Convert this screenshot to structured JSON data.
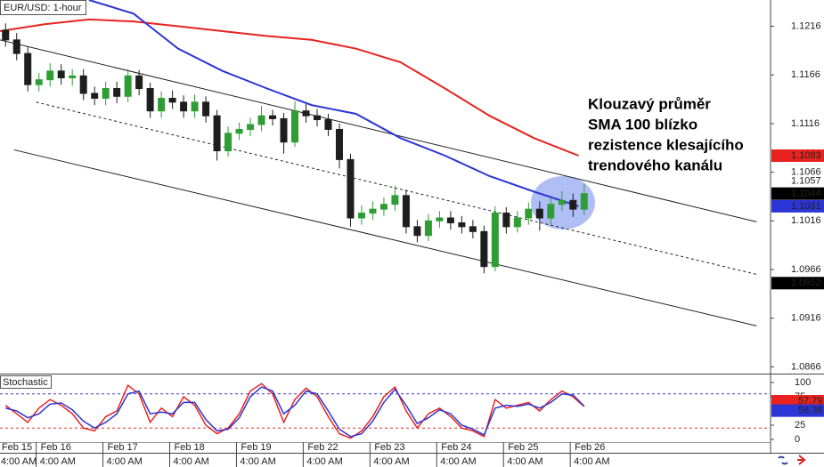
{
  "chart_data": {
    "type": "candlestick",
    "title": "EUR/USD: 1-hour",
    "x": [
      2,
      6,
      10,
      14,
      18,
      22,
      26,
      30,
      34,
      38,
      42,
      46,
      50,
      54,
      58,
      62,
      66,
      70,
      74,
      78,
      82,
      86,
      90,
      94,
      98,
      102,
      106,
      110,
      114,
      118,
      122,
      126,
      130,
      134,
      138,
      142,
      146,
      150,
      154,
      158,
      162,
      166,
      170,
      174,
      178,
      182,
      186,
      190,
      194,
      198,
      202,
      206,
      210
    ],
    "open": [
      1.1212,
      1.1202,
      1.1188,
      1.1156,
      1.1161,
      1.117,
      1.1163,
      1.1165,
      1.1147,
      1.1142,
      1.1152,
      1.1144,
      1.1165,
      1.1152,
      1.1129,
      1.1142,
      1.1138,
      1.1129,
      1.1138,
      1.1124,
      1.1088,
      1.1106,
      1.111,
      1.1115,
      1.1124,
      1.1121,
      1.1097,
      1.1129,
      1.1124,
      1.112,
      1.111,
      1.1079,
      1.1019,
      1.1024,
      1.1028,
      1.1033,
      1.1042,
      1.101,
      1.1001,
      1.1016,
      1.1019,
      1.1014,
      1.101,
      1.1005,
      1.0969,
      1.1024,
      1.101,
      1.1019,
      1.1028,
      1.1019,
      1.1033,
      1.1037,
      1.1028
    ],
    "high": [
      1.1219,
      1.1209,
      1.1195,
      1.1168,
      1.1178,
      1.1177,
      1.1172,
      1.1172,
      1.1154,
      1.1159,
      1.1159,
      1.1172,
      1.1171,
      1.1158,
      1.1149,
      1.115,
      1.1145,
      1.1146,
      1.1144,
      1.113,
      1.1113,
      1.1117,
      1.1122,
      1.1134,
      1.113,
      1.1127,
      1.1139,
      1.1136,
      1.1131,
      1.1126,
      1.1116,
      1.1085,
      1.1032,
      1.1036,
      1.104,
      1.1052,
      1.1048,
      1.1017,
      1.1023,
      1.1026,
      1.1026,
      1.1021,
      1.1017,
      1.1011,
      1.1031,
      1.103,
      1.1026,
      1.1035,
      1.1036,
      1.104,
      1.1047,
      1.1044,
      1.1054
    ],
    "low": [
      1.1195,
      1.1181,
      1.1149,
      1.1149,
      1.1154,
      1.1156,
      1.1155,
      1.114,
      1.1135,
      1.1135,
      1.1137,
      1.1138,
      1.1145,
      1.1122,
      1.1122,
      1.1131,
      1.1122,
      1.1122,
      1.1117,
      1.1078,
      1.1082,
      1.1099,
      1.1103,
      1.1108,
      1.1114,
      1.1085,
      1.1092,
      1.1117,
      1.1113,
      1.1103,
      1.107,
      1.101,
      1.1012,
      1.1017,
      1.1021,
      1.1026,
      1.1003,
      1.0994,
      1.0995,
      1.1009,
      1.1007,
      1.1003,
      1.0998,
      1.0962,
      1.0964,
      1.1003,
      1.1004,
      1.1012,
      1.1006,
      1.1012,
      1.1026,
      1.102,
      1.1022
    ],
    "close": [
      1.1202,
      1.1188,
      1.1156,
      1.1161,
      1.117,
      1.1163,
      1.1165,
      1.1147,
      1.1142,
      1.1152,
      1.1144,
      1.1165,
      1.1152,
      1.1129,
      1.1142,
      1.1138,
      1.1129,
      1.1138,
      1.1124,
      1.1088,
      1.1106,
      1.111,
      1.1115,
      1.1124,
      1.1121,
      1.1097,
      1.1129,
      1.1124,
      1.112,
      1.111,
      1.1079,
      1.1019,
      1.1024,
      1.1028,
      1.1033,
      1.1042,
      1.101,
      1.1001,
      1.1016,
      1.1019,
      1.1014,
      1.101,
      1.1005,
      1.0969,
      1.1024,
      1.101,
      1.1019,
      1.1028,
      1.1019,
      1.1033,
      1.1037,
      1.1028,
      1.1044
    ],
    "up_color": "#2e9e34",
    "down_color": "#1e1e1e",
    "xlim": [
      0,
      277
    ],
    "ylim": [
      1.0859,
      1.1243
    ],
    "yticks": [
      1.0866,
      1.0916,
      1.0966,
      1.1016,
      1.1066,
      1.1116,
      1.1166,
      1.1216
    ],
    "xticks": [
      {
        "value": -1,
        "label": "Feb 15"
      },
      {
        "value": 13,
        "label": "Feb 16"
      },
      {
        "value": 37,
        "label": "Feb 17"
      },
      {
        "value": 61,
        "label": "Feb 18"
      },
      {
        "value": 85,
        "label": "Feb 19"
      },
      {
        "value": 109,
        "label": "Feb 22"
      },
      {
        "value": 133,
        "label": "Feb 23"
      },
      {
        "value": 157,
        "label": "Feb 24"
      },
      {
        "value": 181,
        "label": "Feb 25"
      },
      {
        "value": 205,
        "label": "Feb 26"
      }
    ],
    "time_label": "4:00 AM",
    "last_close_color": "#000000",
    "lines": [
      {
        "color": "#e8231f",
        "x": [
          0,
          16,
          32,
          48,
          64,
          80,
          96,
          112,
          128,
          144,
          160,
          176,
          192,
          208
        ],
        "values": [
          1.1211,
          1.1218,
          1.1223,
          1.1221,
          1.1216,
          1.1211,
          1.1206,
          1.1202,
          1.1193,
          1.1179,
          1.1152,
          1.1124,
          1.1101,
          1.1083
        ]
      },
      {
        "color": "#2b35d6",
        "x": [
          32,
          48,
          56,
          64,
          80,
          96,
          112,
          128,
          144,
          160,
          176,
          192,
          208
        ],
        "values": [
          1.1243,
          1.1229,
          1.1211,
          1.1193,
          1.117,
          1.1152,
          1.1135,
          1.1126,
          1.1101,
          1.1083,
          1.1062,
          1.1046,
          1.1031
        ]
      }
    ],
    "trendlines": [
      {
        "x": [
          0,
          272
        ],
        "values": [
          1.1202,
          1.1015
        ],
        "dashed": false
      },
      {
        "x": [
          13,
          272
        ],
        "values": [
          1.1138,
          1.0961
        ],
        "dashed": true
      },
      {
        "x": [
          5,
          272
        ],
        "values": [
          1.1089,
          1.0908
        ],
        "dashed": false
      }
    ],
    "price_labels": [
      {
        "value": 1.1057,
        "color": "#ffffff"
      },
      {
        "value": 1.0952,
        "color": "#000000"
      }
    ],
    "annotation": [
      "Klouzavý průměr",
      "SMA 100 blízko",
      "rezistence klesajícího",
      "trendového kanálu"
    ],
    "indicator": {
      "type": "line",
      "title": "Stochastic",
      "ylim": [
        -4.7,
        112.5
      ],
      "yticks": [
        0,
        25,
        75,
        100
      ],
      "levels": [
        {
          "value": 80,
          "color": "#3a3acc"
        },
        {
          "value": 20,
          "color": "#e03030"
        }
      ],
      "series": [
        {
          "color": "#e8231f",
          "values": [
            60,
            45,
            30,
            55,
            70,
            60,
            45,
            20,
            15,
            40,
            50,
            95,
            80,
            30,
            55,
            40,
            75,
            60,
            25,
            10,
            20,
            45,
            85,
            98,
            80,
            30,
            70,
            90,
            75,
            40,
            10,
            2,
            15,
            40,
            75,
            92,
            50,
            20,
            45,
            55,
            40,
            20,
            15,
            5,
            70,
            55,
            60,
            65,
            50,
            70,
            85,
            75,
            57.79
          ]
        },
        {
          "color": "#2b35d6",
          "values": [
            55,
            50,
            38,
            45,
            62,
            64,
            52,
            32,
            20,
            30,
            45,
            80,
            85,
            45,
            48,
            45,
            65,
            65,
            35,
            15,
            18,
            38,
            75,
            92,
            85,
            45,
            60,
            85,
            80,
            50,
            18,
            5,
            10,
            32,
            65,
            88,
            60,
            28,
            38,
            52,
            45,
            25,
            18,
            8,
            55,
            60,
            58,
            62,
            55,
            65,
            80,
            78,
            58.38
          ]
        }
      ]
    }
  }
}
